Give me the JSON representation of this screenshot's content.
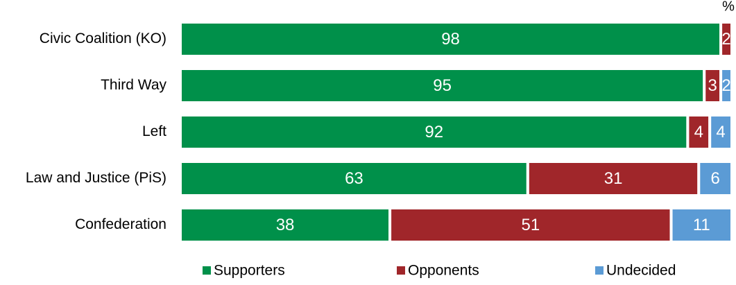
{
  "chart_data": {
    "type": "stacked-bar-horizontal",
    "unit": "%",
    "categories": [
      "Civic Coalition (KO)",
      "Third Way",
      "Left",
      "Law and Justice (PiS)",
      "Confederation"
    ],
    "series": [
      {
        "name": "Supporters",
        "color": "#00904a",
        "values": [
          98,
          95,
          92,
          63,
          38
        ]
      },
      {
        "name": "Opponents",
        "color": "#a0262a",
        "values": [
          2,
          3,
          4,
          31,
          51
        ]
      },
      {
        "name": "Undecided",
        "color": "#5b9bd5",
        "values": [
          0,
          2,
          4,
          6,
          11
        ]
      }
    ],
    "xlim": [
      0,
      100
    ]
  }
}
